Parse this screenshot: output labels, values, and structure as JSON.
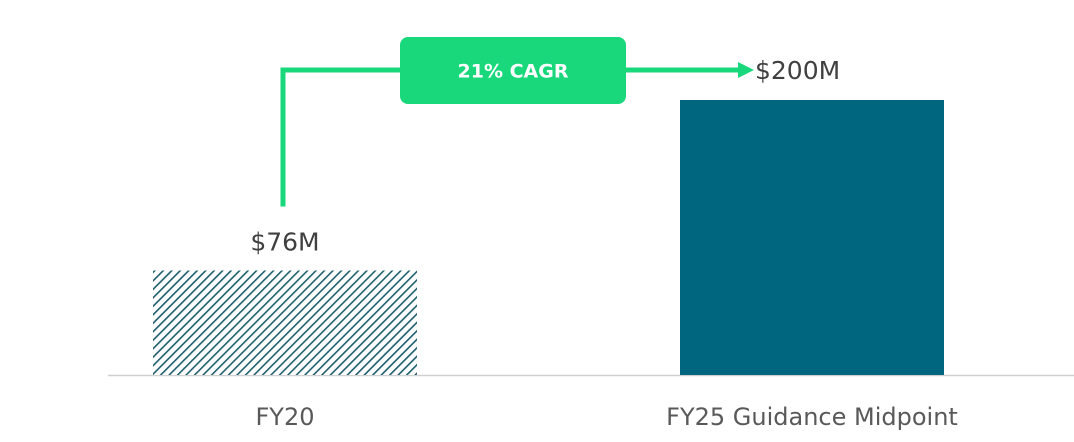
{
  "chart_data": {
    "type": "bar",
    "categories": [
      "FY20",
      "FY25 Guidance Midpoint"
    ],
    "values": [
      76,
      200
    ],
    "value_labels": [
      "$76M",
      "$200M"
    ],
    "colors": [
      "#00667f",
      "#00667f"
    ],
    "hatch": [
      true,
      false
    ],
    "annotation": {
      "text": "21% CAGR",
      "color": "#19d77b"
    }
  }
}
